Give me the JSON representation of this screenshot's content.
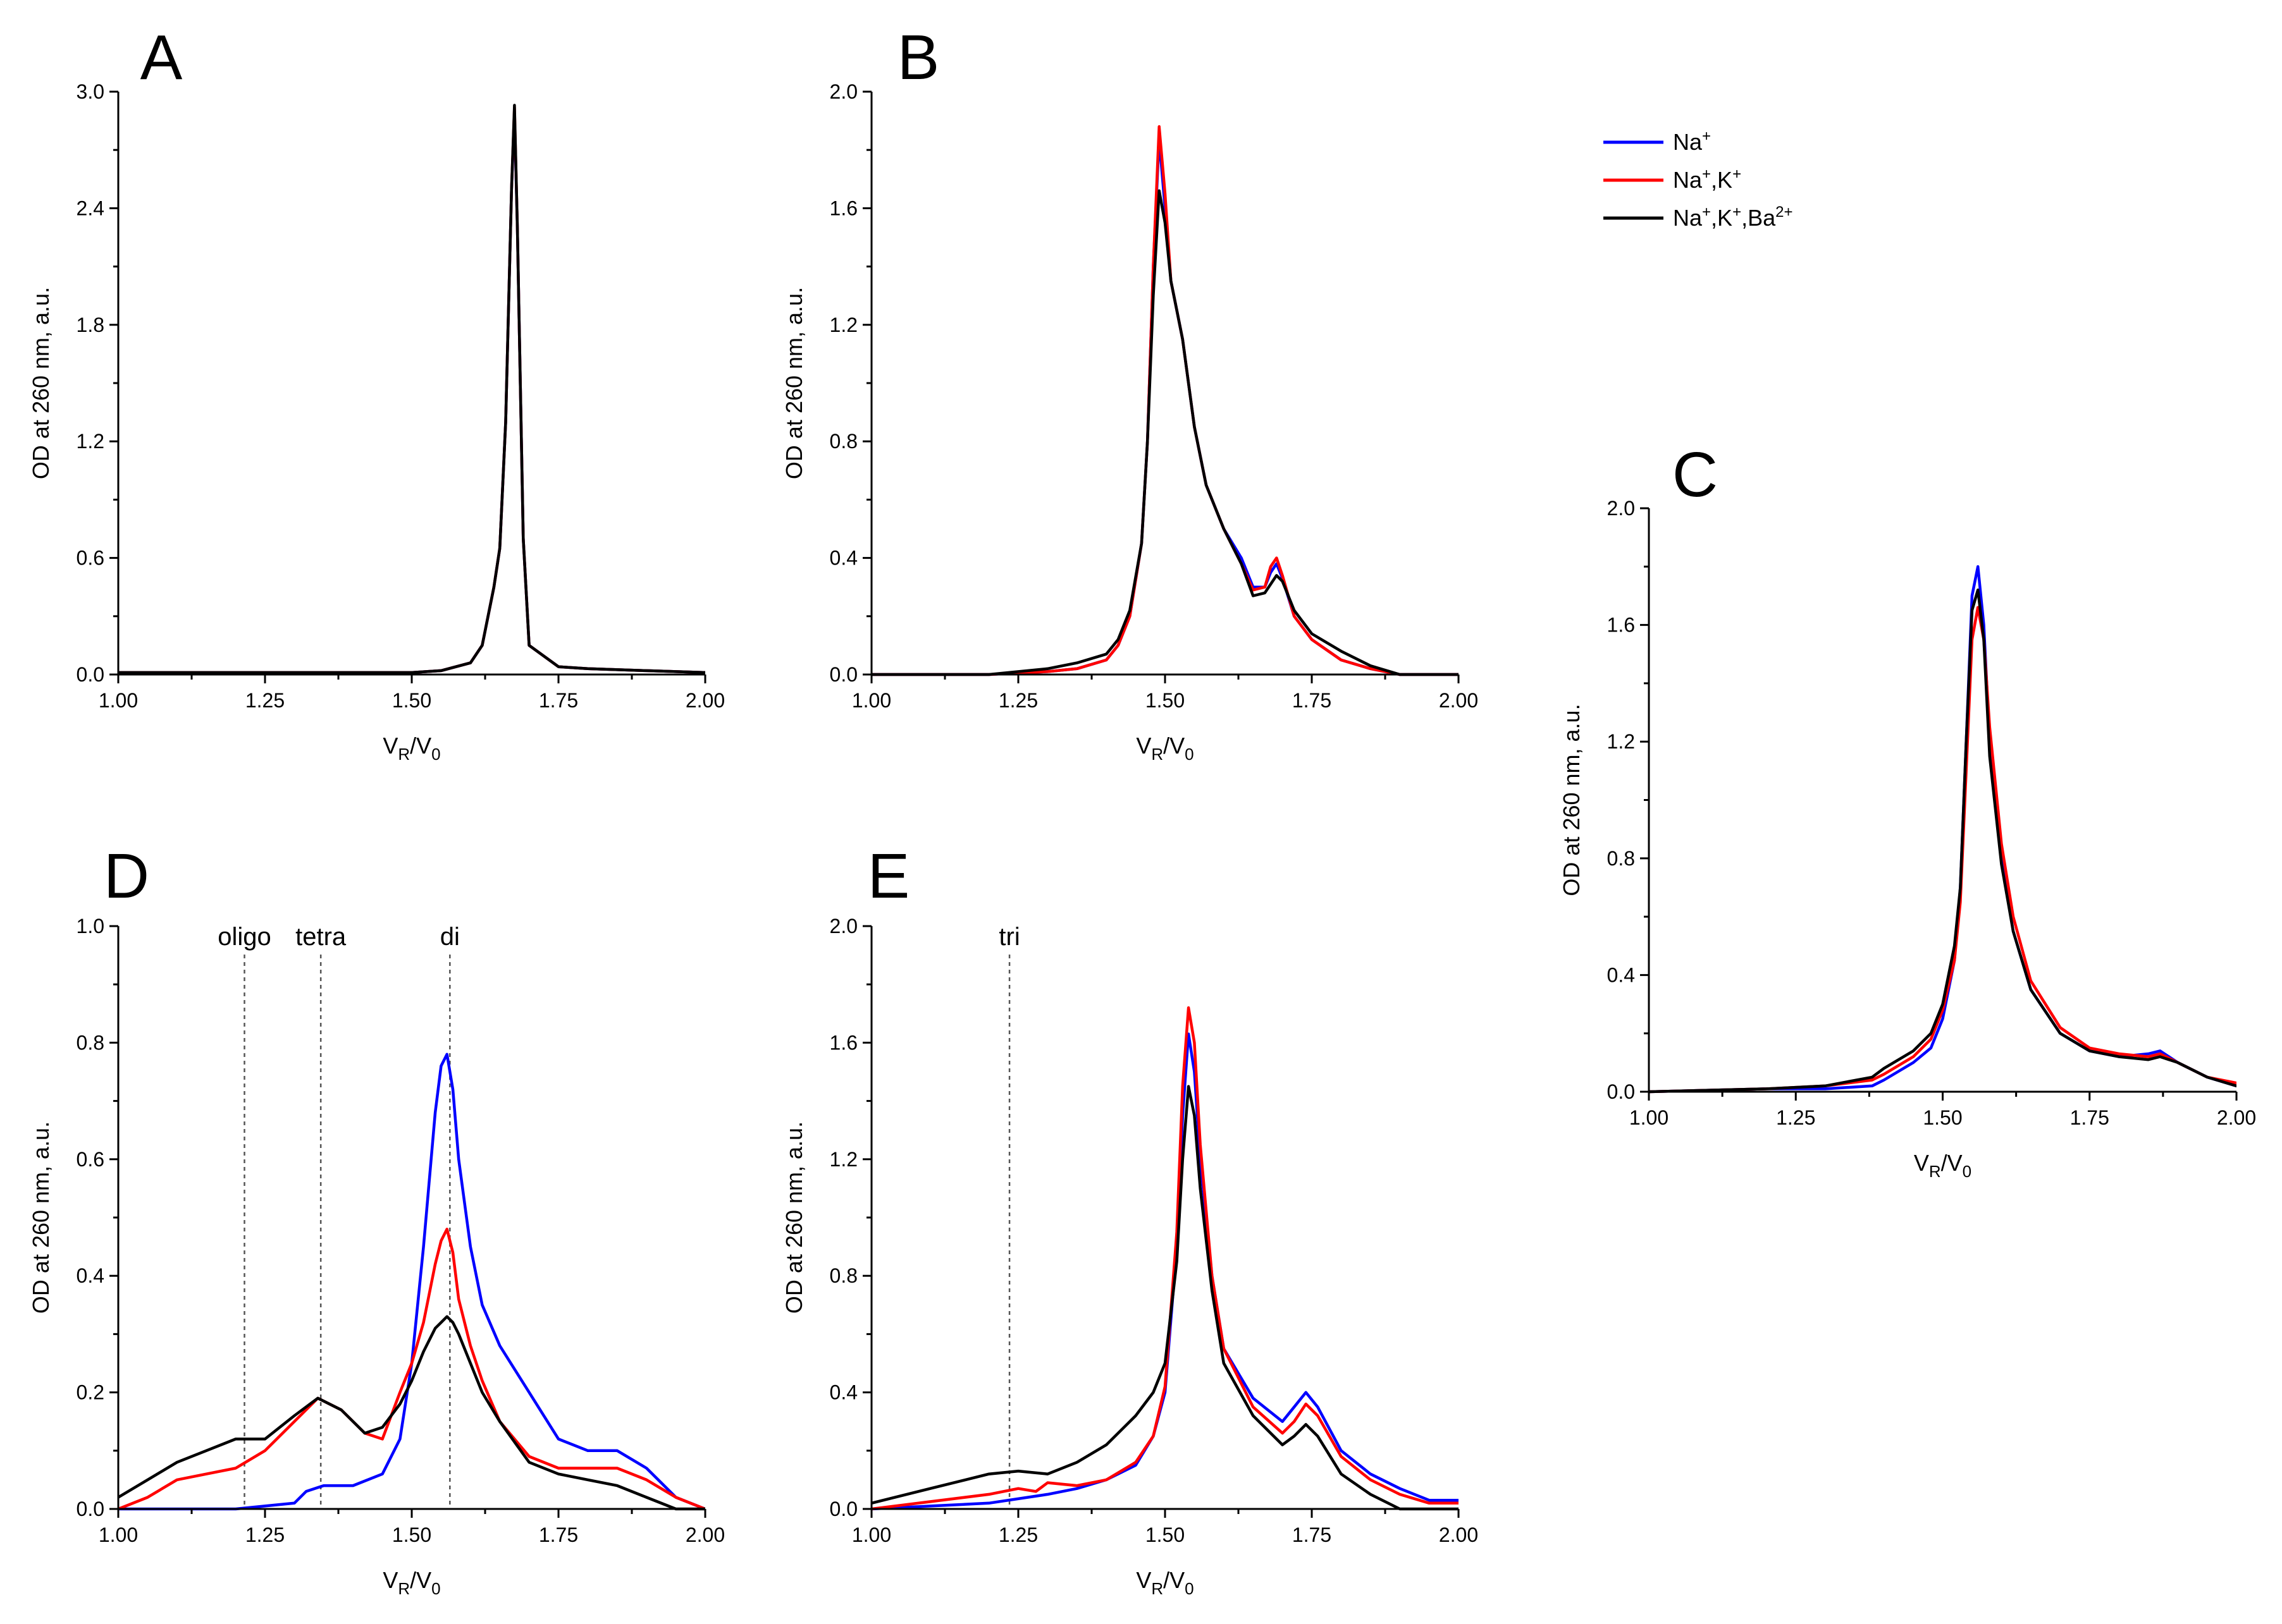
{
  "legend": [
    {
      "label": "Na",
      "sup": "+",
      "color": "#0000ff"
    },
    {
      "label": "Na",
      "sup": "+",
      "label2": ",K",
      "sup2": "+",
      "color": "#ff0000"
    },
    {
      "label": "Na",
      "sup": "+",
      "label2": ",K",
      "sup2": "+",
      "label3": ",Ba",
      "sup3": "2+",
      "color": "#000000"
    }
  ],
  "chart_data": [
    {
      "panel": "A",
      "type": "line",
      "xlabel": "VR/V0",
      "ylabel": "OD at 260 nm, a.u.",
      "xlim": [
        1.0,
        2.0
      ],
      "ylim": [
        0.0,
        3.0
      ],
      "xticks": [
        "1.00",
        "1.25",
        "1.50",
        "1.75",
        "2.00"
      ],
      "yticks": [
        "0.0",
        "0.6",
        "1.2",
        "1.8",
        "2.4",
        "3.0"
      ],
      "annotations": [],
      "series": [
        {
          "color": "#0000ff",
          "x": [
            1.0,
            1.2,
            1.4,
            1.5,
            1.55,
            1.6,
            1.62,
            1.64,
            1.65,
            1.66,
            1.67,
            1.675,
            1.68,
            1.69,
            1.7,
            1.75,
            1.8,
            1.9,
            2.0
          ],
          "y": [
            0.01,
            0.01,
            0.01,
            0.01,
            0.02,
            0.06,
            0.15,
            0.45,
            0.65,
            1.3,
            2.5,
            2.88,
            2.3,
            0.7,
            0.15,
            0.04,
            0.03,
            0.02,
            0.01
          ]
        },
        {
          "color": "#ff0000",
          "x": [
            1.0,
            1.2,
            1.4,
            1.5,
            1.55,
            1.6,
            1.62,
            1.64,
            1.65,
            1.66,
            1.67,
            1.675,
            1.68,
            1.69,
            1.7,
            1.75,
            1.8,
            1.9,
            2.0
          ],
          "y": [
            0.01,
            0.01,
            0.01,
            0.01,
            0.02,
            0.06,
            0.15,
            0.45,
            0.65,
            1.3,
            2.5,
            2.92,
            2.3,
            0.7,
            0.15,
            0.04,
            0.03,
            0.02,
            0.01
          ]
        },
        {
          "color": "#000000",
          "x": [
            1.0,
            1.2,
            1.4,
            1.5,
            1.55,
            1.6,
            1.62,
            1.64,
            1.65,
            1.66,
            1.67,
            1.675,
            1.68,
            1.69,
            1.7,
            1.75,
            1.8,
            1.9,
            2.0
          ],
          "y": [
            0.01,
            0.01,
            0.01,
            0.01,
            0.02,
            0.06,
            0.15,
            0.45,
            0.65,
            1.3,
            2.5,
            2.93,
            2.3,
            0.7,
            0.15,
            0.04,
            0.03,
            0.02,
            0.01
          ]
        }
      ]
    },
    {
      "panel": "B",
      "type": "line",
      "xlabel": "VR/V0",
      "ylabel": "OD at 260 nm, a.u.",
      "xlim": [
        1.0,
        2.0
      ],
      "ylim": [
        0.0,
        2.0
      ],
      "xticks": [
        "1.00",
        "1.25",
        "1.50",
        "1.75",
        "2.00"
      ],
      "yticks": [
        "0.0",
        "0.4",
        "0.8",
        "1.2",
        "1.6",
        "2.0"
      ],
      "annotations": [],
      "series": [
        {
          "color": "#0000ff",
          "x": [
            1.0,
            1.2,
            1.3,
            1.35,
            1.4,
            1.42,
            1.44,
            1.46,
            1.47,
            1.48,
            1.49,
            1.5,
            1.51,
            1.52,
            1.53,
            1.55,
            1.57,
            1.6,
            1.63,
            1.65,
            1.67,
            1.68,
            1.69,
            1.7,
            1.72,
            1.75,
            1.8,
            1.85,
            1.9,
            2.0
          ],
          "y": [
            0.0,
            0.0,
            0.01,
            0.02,
            0.05,
            0.1,
            0.2,
            0.45,
            0.8,
            1.4,
            1.84,
            1.6,
            1.35,
            1.25,
            1.15,
            0.85,
            0.65,
            0.5,
            0.4,
            0.3,
            0.3,
            0.35,
            0.38,
            0.33,
            0.2,
            0.12,
            0.05,
            0.02,
            0.0,
            0.0
          ]
        },
        {
          "color": "#ff0000",
          "x": [
            1.0,
            1.2,
            1.3,
            1.35,
            1.4,
            1.42,
            1.44,
            1.46,
            1.47,
            1.48,
            1.49,
            1.5,
            1.51,
            1.52,
            1.53,
            1.55,
            1.57,
            1.6,
            1.63,
            1.65,
            1.67,
            1.68,
            1.69,
            1.7,
            1.72,
            1.75,
            1.8,
            1.85,
            1.9,
            2.0
          ],
          "y": [
            0.0,
            0.0,
            0.01,
            0.02,
            0.05,
            0.1,
            0.2,
            0.45,
            0.8,
            1.4,
            1.88,
            1.65,
            1.35,
            1.25,
            1.15,
            0.85,
            0.65,
            0.5,
            0.38,
            0.29,
            0.3,
            0.37,
            0.4,
            0.34,
            0.2,
            0.12,
            0.05,
            0.02,
            0.0,
            0.0
          ]
        },
        {
          "color": "#000000",
          "x": [
            1.0,
            1.2,
            1.3,
            1.35,
            1.4,
            1.42,
            1.44,
            1.46,
            1.47,
            1.48,
            1.49,
            1.5,
            1.51,
            1.52,
            1.53,
            1.55,
            1.57,
            1.6,
            1.63,
            1.65,
            1.67,
            1.68,
            1.69,
            1.7,
            1.72,
            1.75,
            1.8,
            1.85,
            1.9,
            2.0
          ],
          "y": [
            0.0,
            0.0,
            0.02,
            0.04,
            0.07,
            0.12,
            0.22,
            0.45,
            0.8,
            1.3,
            1.66,
            1.55,
            1.35,
            1.25,
            1.15,
            0.85,
            0.65,
            0.5,
            0.38,
            0.27,
            0.28,
            0.31,
            0.34,
            0.32,
            0.22,
            0.14,
            0.08,
            0.03,
            0.0,
            0.0
          ]
        }
      ]
    },
    {
      "panel": "C",
      "type": "line",
      "xlabel": "VR/V0",
      "ylabel": "OD at 260 nm, a.u.",
      "xlim": [
        1.0,
        2.0
      ],
      "ylim": [
        0.0,
        2.0
      ],
      "xticks": [
        "1.00",
        "1.25",
        "1.50",
        "1.75",
        "2.00"
      ],
      "yticks": [
        "0.0",
        "0.4",
        "0.8",
        "1.2",
        "1.6",
        "2.0"
      ],
      "annotations": [],
      "series": [
        {
          "color": "#0000ff",
          "x": [
            1.0,
            1.2,
            1.3,
            1.38,
            1.4,
            1.45,
            1.48,
            1.5,
            1.52,
            1.53,
            1.54,
            1.55,
            1.56,
            1.57,
            1.58,
            1.6,
            1.62,
            1.65,
            1.7,
            1.75,
            1.8,
            1.85,
            1.87,
            1.9,
            1.95,
            2.0
          ],
          "y": [
            0.0,
            0.01,
            0.01,
            0.02,
            0.04,
            0.1,
            0.15,
            0.25,
            0.45,
            0.7,
            1.2,
            1.7,
            1.8,
            1.6,
            1.2,
            0.8,
            0.55,
            0.35,
            0.2,
            0.14,
            0.12,
            0.13,
            0.14,
            0.1,
            0.05,
            0.02
          ]
        },
        {
          "color": "#ff0000",
          "x": [
            1.0,
            1.2,
            1.3,
            1.38,
            1.4,
            1.45,
            1.48,
            1.5,
            1.52,
            1.53,
            1.54,
            1.55,
            1.56,
            1.57,
            1.58,
            1.6,
            1.62,
            1.65,
            1.7,
            1.75,
            1.8,
            1.85,
            1.87,
            1.9,
            1.95,
            2.0
          ],
          "y": [
            0.0,
            0.01,
            0.02,
            0.04,
            0.06,
            0.12,
            0.18,
            0.28,
            0.45,
            0.65,
            1.1,
            1.55,
            1.66,
            1.55,
            1.25,
            0.85,
            0.6,
            0.38,
            0.22,
            0.15,
            0.13,
            0.12,
            0.13,
            0.1,
            0.05,
            0.03
          ]
        },
        {
          "color": "#000000",
          "x": [
            1.0,
            1.2,
            1.3,
            1.38,
            1.4,
            1.45,
            1.48,
            1.5,
            1.52,
            1.53,
            1.54,
            1.55,
            1.56,
            1.57,
            1.58,
            1.6,
            1.62,
            1.65,
            1.7,
            1.75,
            1.8,
            1.85,
            1.87,
            1.9,
            1.95,
            2.0
          ],
          "y": [
            0.0,
            0.01,
            0.02,
            0.05,
            0.08,
            0.14,
            0.2,
            0.3,
            0.5,
            0.7,
            1.2,
            1.65,
            1.72,
            1.55,
            1.15,
            0.78,
            0.55,
            0.35,
            0.2,
            0.14,
            0.12,
            0.11,
            0.12,
            0.1,
            0.05,
            0.02
          ]
        }
      ]
    },
    {
      "panel": "D",
      "type": "line",
      "xlabel": "VR/V0",
      "ylabel": "OD at 260 nm, a.u.",
      "xlim": [
        1.0,
        2.0
      ],
      "ylim": [
        0.0,
        1.0
      ],
      "xticks": [
        "1.00",
        "1.25",
        "1.50",
        "1.75",
        "2.00"
      ],
      "yticks": [
        "0.0",
        "0.2",
        "0.4",
        "0.6",
        "0.8",
        "1.0"
      ],
      "annotations": [
        {
          "text": "oligo",
          "x": 1.215
        },
        {
          "text": "tetra",
          "x": 1.345
        },
        {
          "text": "di",
          "x": 1.565
        }
      ],
      "series": [
        {
          "color": "#0000ff",
          "x": [
            1.0,
            1.2,
            1.3,
            1.32,
            1.35,
            1.4,
            1.45,
            1.48,
            1.5,
            1.52,
            1.54,
            1.55,
            1.56,
            1.57,
            1.58,
            1.6,
            1.62,
            1.65,
            1.7,
            1.75,
            1.8,
            1.85,
            1.9,
            1.95,
            2.0
          ],
          "y": [
            0.0,
            0.0,
            0.01,
            0.03,
            0.04,
            0.04,
            0.06,
            0.12,
            0.25,
            0.45,
            0.68,
            0.76,
            0.78,
            0.72,
            0.6,
            0.45,
            0.35,
            0.28,
            0.2,
            0.12,
            0.1,
            0.1,
            0.07,
            0.02,
            0.0
          ]
        },
        {
          "color": "#ff0000",
          "x": [
            1.0,
            1.05,
            1.1,
            1.15,
            1.2,
            1.25,
            1.3,
            1.34,
            1.38,
            1.42,
            1.45,
            1.48,
            1.5,
            1.52,
            1.54,
            1.55,
            1.56,
            1.57,
            1.58,
            1.6,
            1.62,
            1.65,
            1.7,
            1.75,
            1.8,
            1.85,
            1.9,
            1.95,
            2.0
          ],
          "y": [
            0.0,
            0.02,
            0.05,
            0.06,
            0.07,
            0.1,
            0.15,
            0.19,
            0.17,
            0.13,
            0.12,
            0.2,
            0.25,
            0.32,
            0.42,
            0.46,
            0.48,
            0.44,
            0.36,
            0.28,
            0.22,
            0.15,
            0.09,
            0.07,
            0.07,
            0.07,
            0.05,
            0.02,
            0.0
          ]
        },
        {
          "color": "#000000",
          "x": [
            1.0,
            1.05,
            1.1,
            1.15,
            1.2,
            1.25,
            1.3,
            1.34,
            1.38,
            1.42,
            1.45,
            1.48,
            1.5,
            1.52,
            1.54,
            1.55,
            1.56,
            1.57,
            1.58,
            1.6,
            1.62,
            1.65,
            1.7,
            1.75,
            1.8,
            1.85,
            1.9,
            1.95,
            2.0
          ],
          "y": [
            0.02,
            0.05,
            0.08,
            0.1,
            0.12,
            0.12,
            0.16,
            0.19,
            0.17,
            0.13,
            0.14,
            0.18,
            0.22,
            0.27,
            0.31,
            0.32,
            0.33,
            0.32,
            0.3,
            0.25,
            0.2,
            0.15,
            0.08,
            0.06,
            0.05,
            0.04,
            0.02,
            0.0,
            0.0
          ]
        }
      ]
    },
    {
      "panel": "E",
      "type": "line",
      "xlabel": "VR/V0",
      "ylabel": "OD at 260 nm, a.u.",
      "xlim": [
        1.0,
        2.0
      ],
      "ylim": [
        0.0,
        2.0
      ],
      "xticks": [
        "1.00",
        "1.25",
        "1.50",
        "1.75",
        "2.00"
      ],
      "yticks": [
        "0.0",
        "0.4",
        "0.8",
        "1.2",
        "1.6",
        "2.0"
      ],
      "annotations": [
        {
          "text": "tri",
          "x": 1.235
        }
      ],
      "series": [
        {
          "color": "#0000ff",
          "x": [
            1.0,
            1.2,
            1.3,
            1.35,
            1.4,
            1.45,
            1.48,
            1.5,
            1.52,
            1.53,
            1.54,
            1.55,
            1.56,
            1.58,
            1.6,
            1.65,
            1.7,
            1.72,
            1.74,
            1.76,
            1.8,
            1.85,
            1.9,
            1.95,
            2.0
          ],
          "y": [
            0.0,
            0.02,
            0.05,
            0.07,
            0.1,
            0.15,
            0.25,
            0.4,
            0.9,
            1.35,
            1.63,
            1.5,
            1.2,
            0.8,
            0.55,
            0.38,
            0.3,
            0.35,
            0.4,
            0.35,
            0.2,
            0.12,
            0.07,
            0.03,
            0.03
          ]
        },
        {
          "color": "#ff0000",
          "x": [
            1.0,
            1.2,
            1.25,
            1.28,
            1.3,
            1.35,
            1.4,
            1.45,
            1.48,
            1.5,
            1.52,
            1.53,
            1.54,
            1.55,
            1.56,
            1.58,
            1.6,
            1.65,
            1.7,
            1.72,
            1.74,
            1.76,
            1.8,
            1.85,
            1.9,
            1.95,
            2.0
          ],
          "y": [
            0.0,
            0.05,
            0.07,
            0.06,
            0.09,
            0.08,
            0.1,
            0.16,
            0.25,
            0.42,
            0.95,
            1.45,
            1.72,
            1.6,
            1.25,
            0.8,
            0.55,
            0.35,
            0.26,
            0.3,
            0.36,
            0.32,
            0.18,
            0.1,
            0.05,
            0.02,
            0.02
          ]
        },
        {
          "color": "#000000",
          "x": [
            1.0,
            1.1,
            1.2,
            1.25,
            1.3,
            1.35,
            1.4,
            1.45,
            1.48,
            1.5,
            1.52,
            1.53,
            1.54,
            1.55,
            1.56,
            1.58,
            1.6,
            1.65,
            1.7,
            1.72,
            1.74,
            1.76,
            1.8,
            1.85,
            1.9,
            1.95,
            2.0
          ],
          "y": [
            0.02,
            0.07,
            0.12,
            0.13,
            0.12,
            0.16,
            0.22,
            0.32,
            0.4,
            0.5,
            0.85,
            1.2,
            1.45,
            1.35,
            1.1,
            0.75,
            0.5,
            0.32,
            0.22,
            0.25,
            0.29,
            0.25,
            0.12,
            0.05,
            0.0,
            0.0,
            0.0
          ]
        }
      ]
    }
  ]
}
